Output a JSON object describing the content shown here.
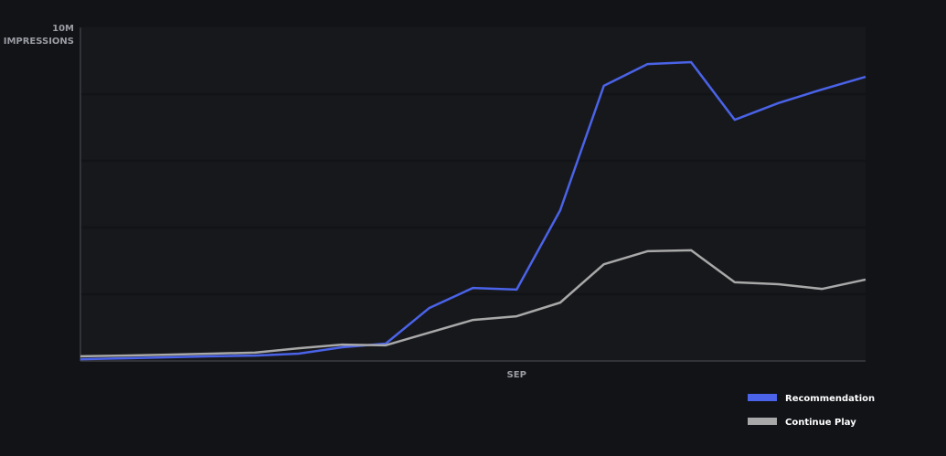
{
  "chart_data": {
    "type": "line",
    "y_label": "IMPRESSIONS",
    "categories": [
      null,
      null,
      null,
      null,
      null,
      null,
      null,
      null,
      null,
      null,
      "SEP",
      null,
      null,
      null,
      null,
      null,
      null,
      null,
      null
    ],
    "series": [
      {
        "name": "Recommendation",
        "color": "#4a63e8",
        "values": [
          50000,
          80000,
          110000,
          140000,
          160000,
          220000,
          410000,
          520000,
          1590000,
          2190000,
          2140000,
          4520000,
          8250000,
          8900000,
          8960000,
          7230000,
          7730000,
          8140000,
          8520000
        ]
      },
      {
        "name": "Continue Play",
        "color": "#a8a8a8",
        "values": [
          140000,
          160000,
          190000,
          220000,
          250000,
          380000,
          490000,
          470000,
          850000,
          1230000,
          1340000,
          1750000,
          2900000,
          3290000,
          3320000,
          2360000,
          2300000,
          2160000,
          2440000
        ]
      }
    ],
    "ylim": [
      0,
      10000000
    ],
    "yticks": [
      {
        "value": 10000000,
        "label": "10M"
      }
    ],
    "legend": "bottom-right"
  }
}
